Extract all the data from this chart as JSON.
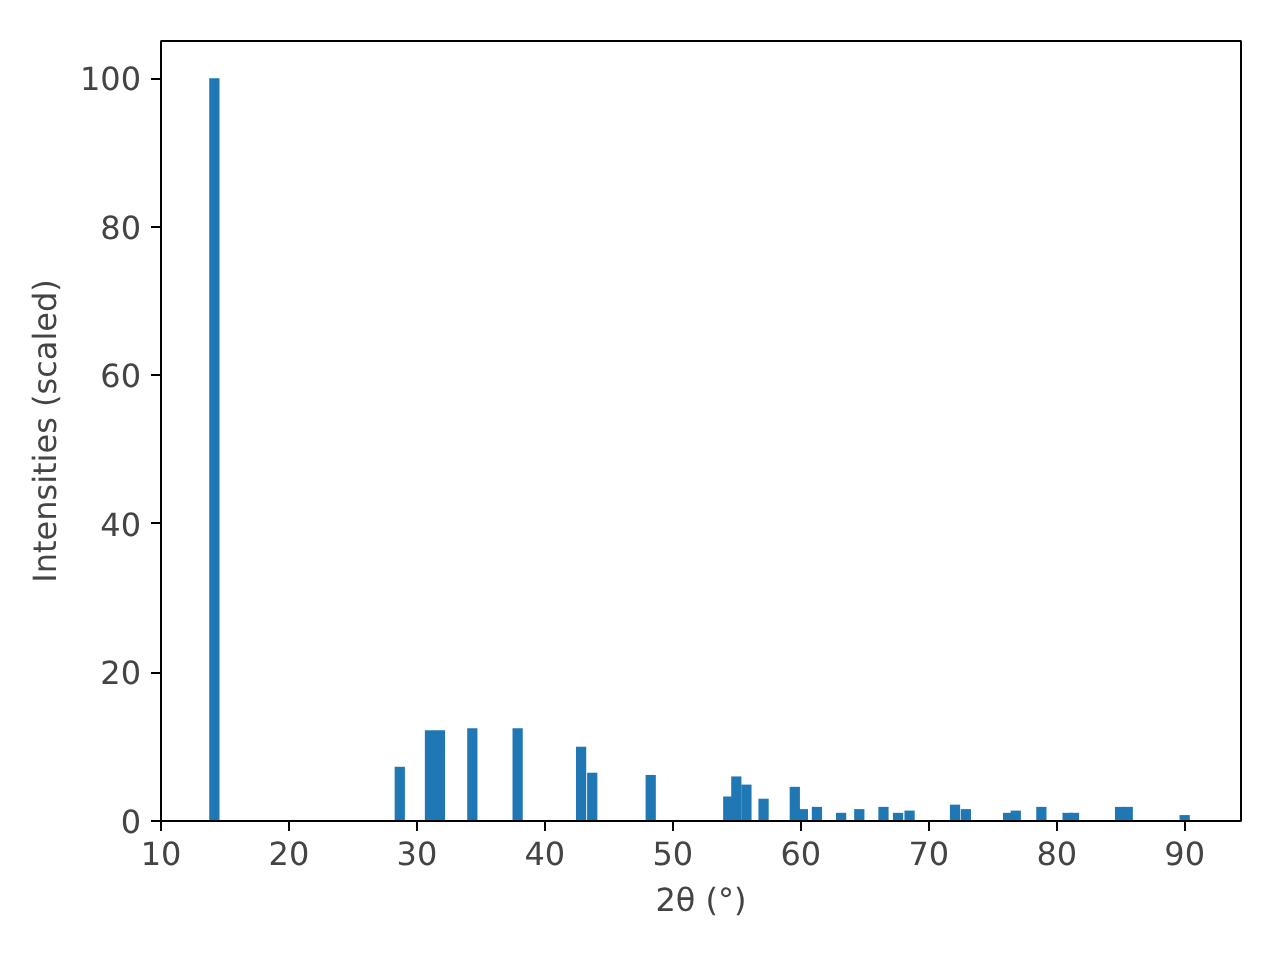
{
  "chart_data": {
    "type": "bar",
    "xlabel": "2θ (°)",
    "ylabel": "Intensities (scaled)",
    "x": [
      14.17,
      28.66,
      31.02,
      31.8,
      34.33,
      37.87,
      42.83,
      43.7,
      48.27,
      54.33,
      54.96,
      55.75,
      57.09,
      59.53,
      60.16,
      61.26,
      63.15,
      64.57,
      66.46,
      67.6,
      68.5,
      72.05,
      72.9,
      76.2,
      76.8,
      78.8,
      80.85,
      81.35,
      84.95,
      85.55,
      90.0
    ],
    "values": [
      100,
      7.3,
      12.2,
      12.2,
      12.5,
      12.5,
      10.0,
      6.5,
      6.2,
      3.3,
      6.0,
      4.9,
      3.0,
      4.6,
      1.6,
      1.9,
      1.1,
      1.6,
      1.9,
      1.1,
      1.4,
      2.2,
      1.6,
      1.1,
      1.4,
      1.9,
      1.1,
      1.1,
      1.9,
      1.9,
      0.8
    ],
    "color": "#1f77b4",
    "xlim": [
      10,
      94.4
    ],
    "ylim": [
      0,
      105
    ],
    "xticks": [
      10,
      20,
      30,
      40,
      50,
      60,
      70,
      80,
      90
    ],
    "yticks": [
      0,
      20,
      40,
      60,
      80,
      100
    ],
    "grid": false
  }
}
